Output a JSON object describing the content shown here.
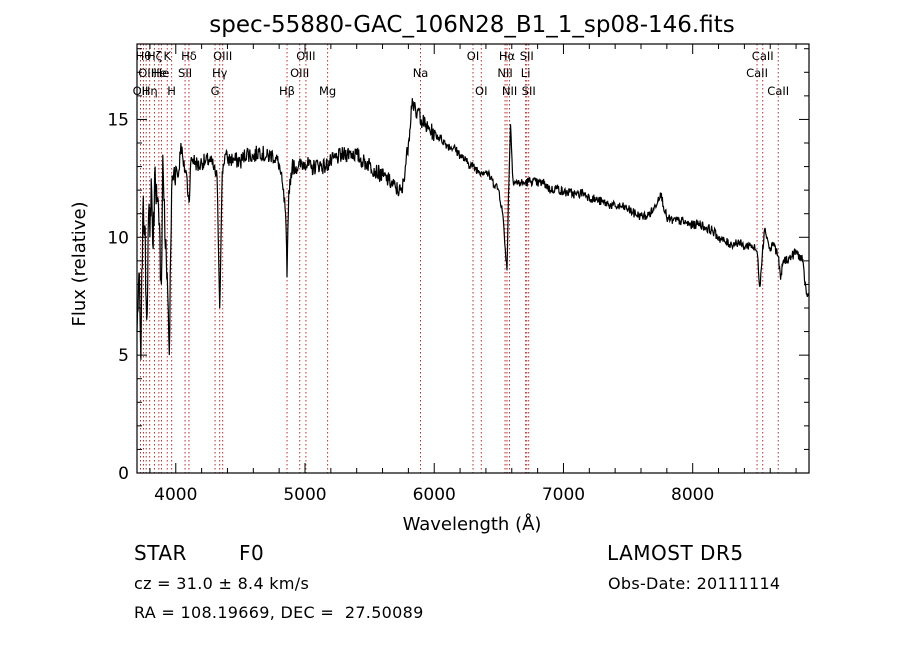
{
  "chart_data": {
    "type": "line",
    "title": "spec-55880-GAC_106N28_B1_1_sp08-146.fits",
    "xlabel": "Wavelength (Å)",
    "ylabel": "Flux (relative)",
    "xlim": [
      3700,
      8900
    ],
    "ylim": [
      0,
      18.2
    ],
    "xticks": [
      4000,
      5000,
      6000,
      7000,
      8000
    ],
    "yticks": [
      0,
      5,
      10,
      15
    ],
    "grid": false,
    "series": [
      {
        "color": "#000000",
        "x": [
          3700,
          3715,
          3730,
          3745,
          3760,
          3775,
          3790,
          3800,
          3810,
          3825,
          3840,
          3855,
          3870,
          3889,
          3900,
          3920,
          3934,
          3950,
          3968,
          3985,
          4000,
          4020,
          4040,
          4060,
          4080,
          4102,
          4120,
          4150,
          4180,
          4200,
          4230,
          4260,
          4290,
          4320,
          4340,
          4360,
          4380,
          4400,
          4450,
          4500,
          4550,
          4600,
          4650,
          4700,
          4750,
          4800,
          4830,
          4850,
          4861,
          4875,
          4900,
          4950,
          5000,
          5050,
          5100,
          5150,
          5200,
          5250,
          5300,
          5350,
          5400,
          5450,
          5500,
          5550,
          5600,
          5650,
          5700,
          5750,
          5800,
          5830,
          5860,
          5880,
          5900,
          5950,
          6000,
          6050,
          6100,
          6150,
          6200,
          6250,
          6300,
          6350,
          6400,
          6450,
          6500,
          6530,
          6550,
          6563,
          6575,
          6590,
          6610,
          6650,
          6700,
          6750,
          6800,
          6850,
          6900,
          6950,
          7000,
          7050,
          7100,
          7150,
          7200,
          7250,
          7300,
          7350,
          7400,
          7450,
          7500,
          7550,
          7600,
          7650,
          7700,
          7750,
          7800,
          7850,
          7900,
          7950,
          8000,
          8050,
          8100,
          8150,
          8200,
          8250,
          8300,
          8350,
          8400,
          8450,
          8498,
          8520,
          8542,
          8560,
          8600,
          8620,
          8662,
          8680,
          8700,
          8750,
          8800,
          8850,
          8880,
          8900
        ],
        "y": [
          6.0,
          8.5,
          4.8,
          11.0,
          10.5,
          6.5,
          11.0,
          10.0,
          12.5,
          9.5,
          13.0,
          11.5,
          10.5,
          8.0,
          13.5,
          9.5,
          8.5,
          5.0,
          12.0,
          12.8,
          13.0,
          12.6,
          14.0,
          13.0,
          12.8,
          11.5,
          13.4,
          13.2,
          13.0,
          13.2,
          13.2,
          13.3,
          13.0,
          12.5,
          7.0,
          12.8,
          13.5,
          13.3,
          13.3,
          13.2,
          13.6,
          13.4,
          13.7,
          13.4,
          13.5,
          13.1,
          12.0,
          11.0,
          8.3,
          12.0,
          13.0,
          13.0,
          13.2,
          12.9,
          13.1,
          13.0,
          13.2,
          13.4,
          13.5,
          13.6,
          13.5,
          13.2,
          13.1,
          12.8,
          12.6,
          12.4,
          12.1,
          11.9,
          14.0,
          15.9,
          15.1,
          15.4,
          15.0,
          14.6,
          14.4,
          14.2,
          13.9,
          13.8,
          13.5,
          13.2,
          13.0,
          12.8,
          12.8,
          12.4,
          12.0,
          11.0,
          9.5,
          8.6,
          11.8,
          14.8,
          12.4,
          12.3,
          12.3,
          12.4,
          12.3,
          12.3,
          12.0,
          12.1,
          11.9,
          11.9,
          11.8,
          11.9,
          11.7,
          11.6,
          11.5,
          11.4,
          11.3,
          11.3,
          11.2,
          11.0,
          10.9,
          10.9,
          11.2,
          11.9,
          10.8,
          10.7,
          10.7,
          10.6,
          10.5,
          10.6,
          10.4,
          10.3,
          10.0,
          9.8,
          9.7,
          9.8,
          9.6,
          9.7,
          9.4,
          7.9,
          9.6,
          10.4,
          9.4,
          9.8,
          9.2,
          8.2,
          9.0,
          9.1,
          9.4,
          9.0,
          7.6,
          7.5
        ]
      }
    ],
    "lines": [
      {
        "x": 3727,
        "label": "OII",
        "row": 3
      },
      {
        "x": 3750,
        "label": "Hθ",
        "row": 1
      },
      {
        "x": 3771,
        "label": "OII",
        "row": 2
      },
      {
        "x": 3798,
        "label": "Hη",
        "row": 3
      },
      {
        "x": 3835,
        "label": "Hζ",
        "row": 1
      },
      {
        "x": 3869,
        "label": "He",
        "row": 2
      },
      {
        "x": 3889,
        "label": "He",
        "row": 2
      },
      {
        "x": 3934,
        "label": "K",
        "row": 1
      },
      {
        "x": 3968,
        "label": "H",
        "row": 3
      },
      {
        "x": 4072,
        "label": "SII",
        "row": 2
      },
      {
        "x": 4102,
        "label": "Hδ",
        "row": 1
      },
      {
        "x": 4304,
        "label": "G",
        "row": 3
      },
      {
        "x": 4340,
        "label": "Hγ",
        "row": 2
      },
      {
        "x": 4363,
        "label": "OIII",
        "row": 1
      },
      {
        "x": 4861,
        "label": "Hβ",
        "row": 3
      },
      {
        "x": 4959,
        "label": "OIII",
        "row": 2
      },
      {
        "x": 5007,
        "label": "OIII",
        "row": 1
      },
      {
        "x": 5175,
        "label": "Mg",
        "row": 3
      },
      {
        "x": 5894,
        "label": "Na",
        "row": 2
      },
      {
        "x": 6300,
        "label": "OI",
        "row": 1
      },
      {
        "x": 6364,
        "label": "OI",
        "row": 3
      },
      {
        "x": 6548,
        "label": "NII",
        "row": 2
      },
      {
        "x": 6563,
        "label": "Hα",
        "row": 1
      },
      {
        "x": 6583,
        "label": "NII",
        "row": 3
      },
      {
        "x": 6707,
        "label": "Li",
        "row": 2
      },
      {
        "x": 6716,
        "label": "SII",
        "row": 1
      },
      {
        "x": 6731,
        "label": "SII",
        "row": 3
      },
      {
        "x": 8498,
        "label": "CaII",
        "row": 2
      },
      {
        "x": 8542,
        "label": "CaII",
        "row": 1
      },
      {
        "x": 8662,
        "label": "CaII",
        "row": 3
      }
    ]
  },
  "footer": {
    "object_class": "STAR",
    "subclass": "F0",
    "survey": "LAMOST DR5",
    "redshift": "cz = 31.0 ± 8.4 km/s",
    "obs_date": "Obs-Date: 20111114",
    "coords": "RA = 108.19669, DEC =  27.50089"
  }
}
